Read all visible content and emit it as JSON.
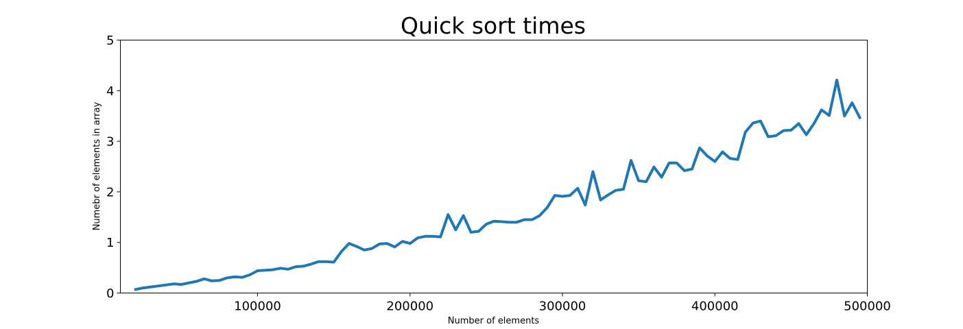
{
  "chart_data": {
    "type": "line",
    "title": "Quick sort times",
    "xlabel": "Number of elements",
    "ylabel": "Numebr of elements in array",
    "xlim": [
      10000,
      500000
    ],
    "ylim": [
      0,
      5
    ],
    "xticks": [
      100000,
      200000,
      300000,
      400000,
      500000
    ],
    "yticks": [
      0,
      1,
      2,
      3,
      4,
      5
    ],
    "grid": false,
    "legend": "none",
    "series": [
      {
        "color": "#1f77b4",
        "x": [
          20000,
          25000,
          30000,
          35000,
          40000,
          45000,
          50000,
          55000,
          60000,
          65000,
          70000,
          75000,
          80000,
          85000,
          90000,
          95000,
          100000,
          105000,
          110000,
          115000,
          120000,
          125000,
          130000,
          135000,
          140000,
          145000,
          150000,
          155000,
          160000,
          165000,
          170000,
          175000,
          180000,
          185000,
          190000,
          195000,
          200000,
          205000,
          210000,
          215000,
          220000,
          225000,
          230000,
          235000,
          240000,
          245000,
          250000,
          255000,
          260000,
          265000,
          270000,
          275000,
          280000,
          285000,
          290000,
          295000,
          300000,
          305000,
          310000,
          315000,
          320000,
          325000,
          330000,
          335000,
          340000,
          345000,
          350000,
          355000,
          360000,
          365000,
          370000,
          375000,
          380000,
          385000,
          390000,
          395000,
          400000,
          405000,
          410000,
          415000,
          420000,
          425000,
          430000,
          435000,
          440000,
          445000,
          450000,
          455000,
          460000,
          465000,
          470000,
          475000,
          480000,
          485000,
          490000,
          495000
        ],
        "y": [
          0.07,
          0.1,
          0.12,
          0.14,
          0.16,
          0.18,
          0.17,
          0.2,
          0.23,
          0.28,
          0.24,
          0.25,
          0.3,
          0.32,
          0.31,
          0.36,
          0.44,
          0.45,
          0.46,
          0.49,
          0.47,
          0.52,
          0.53,
          0.57,
          0.62,
          0.62,
          0.61,
          0.82,
          0.98,
          0.92,
          0.85,
          0.88,
          0.97,
          0.98,
          0.91,
          1.02,
          0.98,
          1.09,
          1.12,
          1.12,
          1.11,
          1.55,
          1.25,
          1.53,
          1.2,
          1.22,
          1.36,
          1.42,
          1.41,
          1.4,
          1.4,
          1.45,
          1.45,
          1.53,
          1.69,
          1.93,
          1.91,
          1.93,
          2.07,
          1.74,
          2.4,
          1.84,
          1.94,
          2.03,
          2.05,
          2.62,
          2.22,
          2.2,
          2.49,
          2.29,
          2.57,
          2.57,
          2.42,
          2.45,
          2.87,
          2.71,
          2.6,
          2.79,
          2.66,
          2.64,
          3.18,
          3.36,
          3.4,
          3.09,
          3.11,
          3.21,
          3.22,
          3.35,
          3.13,
          3.35,
          3.62,
          3.51,
          4.21,
          3.5,
          3.76,
          3.47
        ]
      }
    ]
  }
}
